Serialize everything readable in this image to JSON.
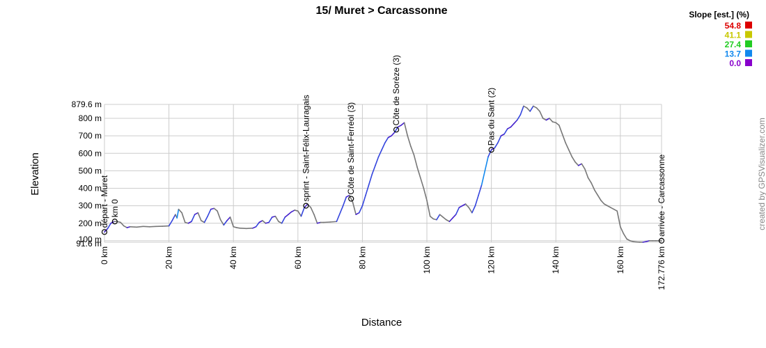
{
  "chart_data": {
    "type": "line",
    "title": "15/ Muret > Carcassonne",
    "xlabel": "Distance",
    "ylabel": "Elevation",
    "x_unit": "km",
    "y_unit": "m",
    "xlim": [
      0,
      172.776
    ],
    "ylim": [
      91.6,
      879.6
    ],
    "x_ticks": [
      0,
      20,
      40,
      60,
      80,
      100,
      120,
      140,
      160,
      172.776
    ],
    "x_tick_labels": [
      "0 km",
      "20 km",
      "40 km",
      "60 km",
      "80 km",
      "100 km",
      "120 km",
      "140 km",
      "160 km",
      "172.776 km"
    ],
    "y_ticks": [
      91.6,
      100,
      200,
      300,
      400,
      500,
      600,
      700,
      800,
      879.6
    ],
    "y_tick_labels": [
      "91.6 m",
      "100 m",
      "200 m",
      "300 m",
      "400 m",
      "500 m",
      "600 m",
      "700 m",
      "800 m",
      "879.6 m"
    ],
    "grid": true,
    "legend": {
      "title": "Slope [est.] (%)",
      "placement": "top-right",
      "entries": [
        {
          "label": "54.8",
          "color": "#dd0000"
        },
        {
          "label": "41.1",
          "color": "#c8c800"
        },
        {
          "label": "27.4",
          "color": "#22cc22"
        },
        {
          "label": "13.7",
          "color": "#1188ee"
        },
        {
          "label": "0.0",
          "color": "#8800cc"
        }
      ]
    },
    "series": [
      {
        "x": [
          0,
          1,
          2,
          3,
          4,
          5,
          6,
          7,
          8,
          10,
          12,
          14,
          16,
          18,
          20,
          21,
          22,
          22.5,
          23,
          24,
          25,
          26,
          27,
          28,
          29,
          30,
          31,
          32,
          33,
          34,
          35,
          36,
          37,
          38,
          39,
          40,
          41,
          42,
          44,
          46,
          47,
          48,
          49,
          50,
          51,
          52,
          53,
          54,
          55,
          56,
          57,
          58,
          59,
          60,
          61,
          62,
          63,
          64,
          65,
          66,
          67,
          68,
          70,
          72,
          74,
          75,
          76,
          77,
          78,
          79,
          80,
          81,
          82,
          83,
          84,
          85,
          86,
          87,
          88,
          89,
          90,
          91,
          92,
          93,
          94,
          95,
          96,
          97,
          98,
          99,
          100,
          101,
          102,
          103,
          104,
          105,
          106,
          107,
          108,
          109,
          110,
          111,
          112,
          113,
          114,
          115,
          116,
          117,
          118,
          119,
          120,
          121,
          122,
          123,
          124,
          125,
          126,
          127,
          128,
          129,
          130,
          131,
          132,
          133,
          134,
          135,
          136,
          137,
          138,
          139,
          140,
          141,
          142,
          143,
          144,
          145,
          146,
          147,
          148,
          149,
          150,
          151,
          152,
          153,
          154,
          155,
          156,
          157,
          158,
          159,
          160,
          161,
          162,
          163,
          164,
          165,
          166,
          167,
          168,
          169,
          170,
          171,
          172,
          172.776
        ],
        "y": [
          150,
          170,
          200,
          210,
          210,
          205,
          185,
          175,
          180,
          178,
          182,
          180,
          182,
          183,
          185,
          215,
          250,
          230,
          280,
          260,
          205,
          200,
          210,
          250,
          260,
          215,
          205,
          240,
          280,
          285,
          270,
          220,
          190,
          215,
          235,
          180,
          175,
          172,
          170,
          172,
          180,
          205,
          215,
          200,
          205,
          235,
          240,
          210,
          200,
          235,
          250,
          265,
          275,
          270,
          240,
          290,
          310,
          290,
          250,
          200,
          205,
          205,
          207,
          210,
          300,
          350,
          360,
          320,
          250,
          260,
          300,
          360,
          420,
          480,
          530,
          580,
          620,
          660,
          690,
          700,
          720,
          750,
          760,
          775,
          700,
          640,
          590,
          520,
          460,
          400,
          330,
          240,
          225,
          220,
          250,
          235,
          220,
          210,
          230,
          250,
          290,
          300,
          310,
          290,
          260,
          300,
          360,
          420,
          500,
          580,
          620,
          630,
          660,
          700,
          710,
          740,
          750,
          770,
          790,
          820,
          870,
          860,
          840,
          870,
          860,
          840,
          800,
          790,
          800,
          780,
          775,
          760,
          710,
          660,
          620,
          580,
          550,
          530,
          540,
          510,
          460,
          430,
          390,
          360,
          330,
          310,
          300,
          290,
          280,
          270,
          180,
          140,
          110,
          100,
          95,
          93,
          92,
          91.6,
          95,
          100,
          100,
          100,
          100,
          100
        ]
      }
    ],
    "waypoints": [
      {
        "km": 0,
        "label": "départ - Muret"
      },
      {
        "km": 3.2,
        "label": "km 0"
      },
      {
        "km": 62.5,
        "label": "sprint - Saint-Félix-Lauragais"
      },
      {
        "km": 76.5,
        "label": "Côte de Saint-Ferréol (3)"
      },
      {
        "km": 90.5,
        "label": "Côte de Sorèze (3)"
      },
      {
        "km": 120,
        "label": "Pas du Sant (2)"
      },
      {
        "km": 172.776,
        "label": "arrivée - Carcassonne"
      }
    ],
    "credit": "created by GPSVisualizer.com"
  }
}
